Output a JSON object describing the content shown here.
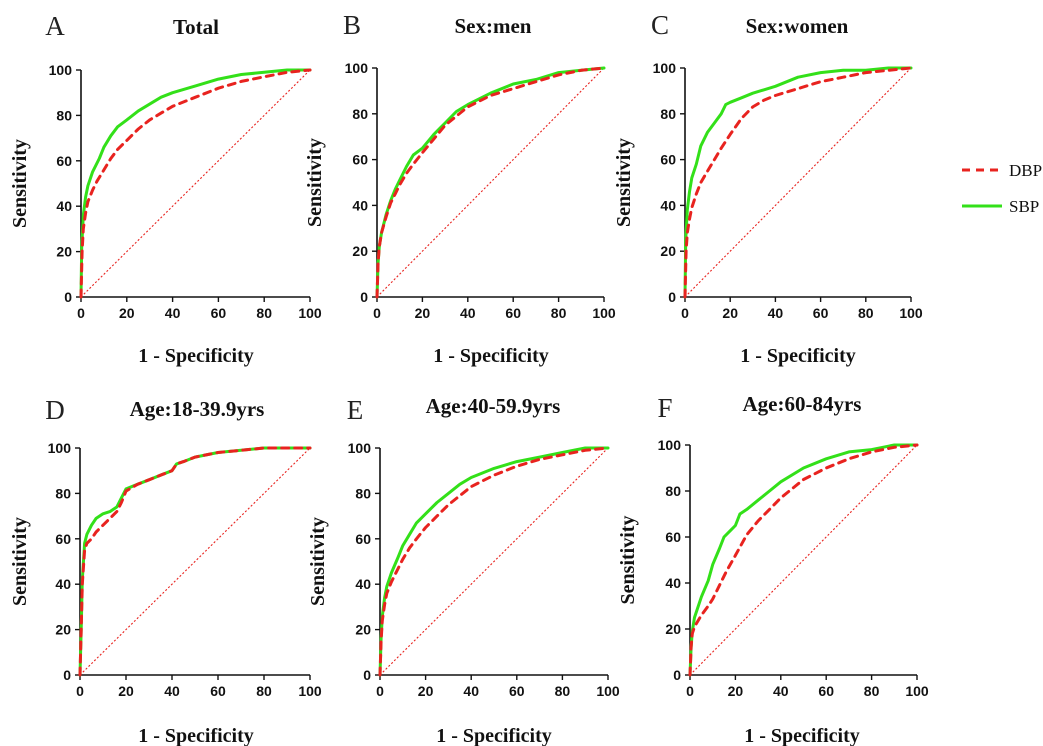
{
  "legend": [
    {
      "name": "DBP",
      "color": "#e8231f",
      "dash": true
    },
    {
      "name": "SBP",
      "color": "#33e019",
      "dash": false
    }
  ],
  "chart_data": [
    {
      "type": "line",
      "letter": "A",
      "title": "Total",
      "xlabel": "1 - Specificity",
      "ylabel": "Sensitivity",
      "xlim": [
        0,
        100
      ],
      "ylim": [
        0,
        100
      ],
      "xticks": [
        "0",
        "20",
        "40",
        "60",
        "80",
        "100"
      ],
      "yticks": [
        "0",
        "20",
        "40",
        "60",
        "80",
        "100"
      ],
      "series": [
        {
          "name": "DBP",
          "x": [
            0,
            0.5,
            1,
            2,
            3,
            5,
            7,
            10,
            13,
            16,
            20,
            25,
            30,
            35,
            40,
            50,
            60,
            70,
            80,
            90,
            100
          ],
          "y": [
            0,
            20,
            30,
            37,
            42,
            47,
            51,
            56,
            61,
            65,
            69,
            74,
            78,
            81,
            84,
            88,
            92,
            95,
            97,
            99,
            100
          ]
        },
        {
          "name": "SBP",
          "x": [
            0,
            0.3,
            1,
            2,
            3,
            5,
            8,
            10,
            13,
            16,
            20,
            25,
            30,
            35,
            40,
            50,
            60,
            70,
            80,
            90,
            100
          ],
          "y": [
            0,
            22,
            36,
            44,
            49,
            55,
            61,
            66,
            71,
            75,
            78,
            82,
            85,
            88,
            90,
            93,
            96,
            98,
            99,
            100,
            100
          ]
        }
      ]
    },
    {
      "type": "line",
      "letter": "B",
      "title": "Sex:men",
      "xlabel": "1 - Specificity",
      "ylabel": "Sensitivity",
      "xlim": [
        0,
        100
      ],
      "ylim": [
        0,
        100
      ],
      "xticks": [
        "0",
        "20",
        "40",
        "60",
        "80",
        "100"
      ],
      "yticks": [
        "0",
        "20",
        "40",
        "60",
        "80",
        "100"
      ],
      "series": [
        {
          "name": "DBP",
          "x": [
            0,
            0.5,
            1,
            2,
            4,
            6,
            8,
            10,
            13,
            16,
            20,
            25,
            30,
            35,
            40,
            50,
            60,
            70,
            80,
            90,
            100
          ],
          "y": [
            0,
            15,
            22,
            28,
            35,
            41,
            45,
            49,
            54,
            58,
            63,
            69,
            75,
            79,
            83,
            88,
            91,
            94,
            97,
            99,
            100
          ]
        },
        {
          "name": "SBP",
          "x": [
            0,
            0.5,
            1,
            2,
            4,
            6,
            8,
            10,
            13,
            16,
            20,
            25,
            30,
            35,
            40,
            50,
            60,
            70,
            80,
            90,
            100
          ],
          "y": [
            0,
            15,
            22,
            28,
            36,
            42,
            47,
            51,
            57,
            62,
            65,
            71,
            76,
            81,
            84,
            89,
            93,
            95,
            98,
            99,
            100
          ]
        }
      ]
    },
    {
      "type": "line",
      "letter": "C",
      "title": "Sex:women",
      "xlabel": "1 - Specificity",
      "ylabel": "Sensitivity",
      "xlim": [
        0,
        100
      ],
      "ylim": [
        0,
        100
      ],
      "xticks": [
        "0",
        "20",
        "40",
        "60",
        "80",
        "100"
      ],
      "yticks": [
        "0",
        "20",
        "40",
        "60",
        "80",
        "100"
      ],
      "series": [
        {
          "name": "DBP",
          "x": [
            0,
            0.5,
            1,
            2,
            3,
            5,
            7,
            10,
            13,
            16,
            20,
            25,
            30,
            35,
            40,
            50,
            60,
            70,
            80,
            90,
            100
          ],
          "y": [
            0,
            20,
            28,
            34,
            39,
            45,
            50,
            55,
            60,
            65,
            71,
            78,
            83,
            86,
            88,
            91,
            94,
            96,
            98,
            99,
            100
          ]
        },
        {
          "name": "SBP",
          "x": [
            0,
            0.3,
            1,
            2,
            3,
            5,
            7,
            10,
            13,
            16,
            18,
            20,
            25,
            30,
            40,
            50,
            60,
            70,
            80,
            90,
            100
          ],
          "y": [
            0,
            25,
            38,
            46,
            52,
            58,
            66,
            72,
            76,
            80,
            84,
            85,
            87,
            89,
            92,
            96,
            98,
            99,
            99,
            100,
            100
          ]
        }
      ]
    },
    {
      "type": "line",
      "letter": "D",
      "title": "Age:18-39.9yrs",
      "xlabel": "1 - Specificity",
      "ylabel": "Sensitivity",
      "xlim": [
        0,
        100
      ],
      "ylim": [
        0,
        100
      ],
      "xticks": [
        "0",
        "20",
        "40",
        "60",
        "80",
        "100"
      ],
      "yticks": [
        "0",
        "20",
        "40",
        "60",
        "80",
        "100"
      ],
      "series": [
        {
          "name": "DBP",
          "x": [
            0,
            0.5,
            1,
            2,
            3,
            5,
            7,
            10,
            13,
            16,
            18,
            20,
            25,
            30,
            35,
            40,
            42,
            45,
            50,
            60,
            70,
            80,
            90,
            100
          ],
          "y": [
            0,
            20,
            40,
            55,
            58,
            60,
            63,
            66,
            69,
            72,
            76,
            81,
            84,
            86,
            88,
            90,
            93,
            94,
            96,
            98,
            99,
            100,
            100,
            100
          ]
        },
        {
          "name": "SBP",
          "x": [
            0,
            0.5,
            1,
            2,
            3,
            5,
            7,
            10,
            13,
            16,
            18,
            20,
            25,
            30,
            35,
            40,
            42,
            45,
            50,
            60,
            70,
            80,
            90,
            100
          ],
          "y": [
            0,
            20,
            42,
            58,
            62,
            66,
            69,
            71,
            72,
            74,
            78,
            82,
            84,
            86,
            88,
            90,
            93,
            94,
            96,
            98,
            99,
            100,
            100,
            100
          ]
        }
      ]
    },
    {
      "type": "line",
      "letter": "E",
      "title": "Age:40-59.9yrs",
      "xlabel": "1 - Specificity",
      "ylabel": "Sensitivity",
      "xlim": [
        0,
        100
      ],
      "ylim": [
        0,
        100
      ],
      "xticks": [
        "0",
        "20",
        "40",
        "60",
        "80",
        "100"
      ],
      "yticks": [
        "0",
        "20",
        "40",
        "60",
        "80",
        "100"
      ],
      "series": [
        {
          "name": "DBP",
          "x": [
            0,
            0.5,
            1,
            2,
            3,
            5,
            8,
            10,
            13,
            16,
            20,
            25,
            30,
            35,
            40,
            50,
            60,
            70,
            80,
            90,
            100
          ],
          "y": [
            0,
            15,
            24,
            31,
            36,
            41,
            47,
            51,
            56,
            60,
            65,
            70,
            75,
            79,
            83,
            88,
            92,
            95,
            97,
            99,
            100
          ]
        },
        {
          "name": "SBP",
          "x": [
            0,
            0.5,
            1,
            2,
            3,
            5,
            8,
            10,
            13,
            16,
            20,
            25,
            30,
            35,
            40,
            50,
            60,
            70,
            80,
            90,
            100
          ],
          "y": [
            0,
            16,
            26,
            34,
            39,
            45,
            52,
            57,
            62,
            67,
            71,
            76,
            80,
            84,
            87,
            91,
            94,
            96,
            98,
            100,
            100
          ]
        }
      ]
    },
    {
      "type": "line",
      "letter": "F",
      "title": "Age:60-84yrs",
      "xlabel": "1 - Specificity",
      "ylabel": "Sensitivity",
      "xlim": [
        0,
        100
      ],
      "ylim": [
        0,
        100
      ],
      "xticks": [
        "0",
        "20",
        "40",
        "60",
        "80",
        "100"
      ],
      "yticks": [
        "0",
        "20",
        "40",
        "60",
        "80",
        "100"
      ],
      "series": [
        {
          "name": "DBP",
          "x": [
            0,
            0.5,
            1,
            2,
            5,
            8,
            10,
            13,
            16,
            20,
            25,
            30,
            35,
            40,
            50,
            60,
            70,
            80,
            90,
            100
          ],
          "y": [
            0,
            12,
            18,
            21,
            26,
            30,
            33,
            39,
            45,
            52,
            61,
            67,
            72,
            77,
            85,
            90,
            94,
            97,
            99,
            100
          ]
        },
        {
          "name": "SBP",
          "x": [
            0,
            0.5,
            1,
            2,
            5,
            8,
            10,
            13,
            15,
            18,
            20,
            22,
            25,
            30,
            35,
            40,
            50,
            60,
            70,
            80,
            90,
            100
          ],
          "y": [
            0,
            12,
            19,
            25,
            34,
            41,
            48,
            55,
            60,
            63,
            65,
            70,
            72,
            76,
            80,
            84,
            90,
            94,
            97,
            98,
            100,
            100
          ]
        }
      ]
    }
  ]
}
